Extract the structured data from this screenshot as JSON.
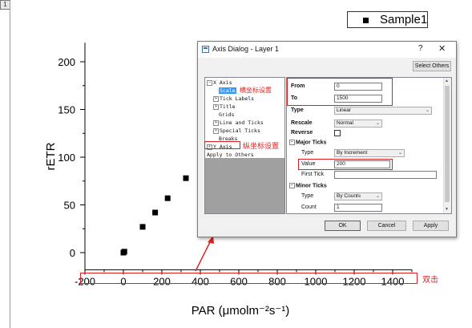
{
  "layer_badge": "1",
  "legend": {
    "label": "Sample1"
  },
  "chart_data": {
    "type": "scatter",
    "xlabel": "PAR (μmolm⁻²s⁻¹)",
    "ylabel": "rETR",
    "xlim": [
      -200,
      1500
    ],
    "ylim": [
      -18,
      220
    ],
    "x_ticks": [
      -200,
      0,
      200,
      400,
      600,
      800,
      1000,
      1200,
      1400
    ],
    "y_ticks": [
      0,
      50,
      100,
      150,
      200
    ],
    "series": [
      {
        "name": "Sample1",
        "marker": "square",
        "color": "#000000",
        "x": [
          0,
          5,
          100,
          165,
          230,
          325
        ],
        "y": [
          0,
          1,
          27,
          42,
          57,
          78
        ]
      }
    ]
  },
  "annotations": {
    "x_axis_label": "双击",
    "y_axis_label": "纵坐标设置",
    "scale_label": "横坐标设置",
    "color": "#e02020"
  },
  "dialog": {
    "title": "Axis Dialog - Layer 1",
    "help": "?",
    "close": "✕",
    "select_others": "Select Others",
    "tree": [
      {
        "pm": "−",
        "label": "X Axis"
      },
      {
        "pm": "",
        "label": "Scale",
        "selected": true
      },
      {
        "pm": "+",
        "label": "Tick Labels"
      },
      {
        "pm": "+",
        "label": "Title"
      },
      {
        "pm": "",
        "label": "Grids"
      },
      {
        "pm": "+",
        "label": "Line and Ticks"
      },
      {
        "pm": "+",
        "label": "Special Ticks"
      },
      {
        "pm": "",
        "label": "Breaks"
      },
      {
        "pm": "+",
        "label": "Y Axis"
      },
      {
        "pm": "",
        "label": "Apply to Others"
      }
    ],
    "fields": {
      "from_label": "From",
      "from_value": "0",
      "to_label": "To",
      "to_value": "1500",
      "type_label": "Type",
      "type_value": "Linear",
      "rescale_label": "Rescale",
      "rescale_value": "Normal",
      "reverse_label": "Reverse",
      "major_ticks_label": "Major Ticks",
      "major_type_label": "Type",
      "major_type_value": "By Increment",
      "value_label": "Value",
      "value_value": "200",
      "first_tick_label": "First Tick",
      "first_tick_value": "",
      "minor_ticks_label": "Minor Ticks",
      "minor_type_label": "Type",
      "minor_type_value": "By Counts",
      "count_label": "Count",
      "count_value": "1"
    },
    "buttons": {
      "ok": "OK",
      "cancel": "Cancel",
      "apply": "Apply"
    }
  }
}
